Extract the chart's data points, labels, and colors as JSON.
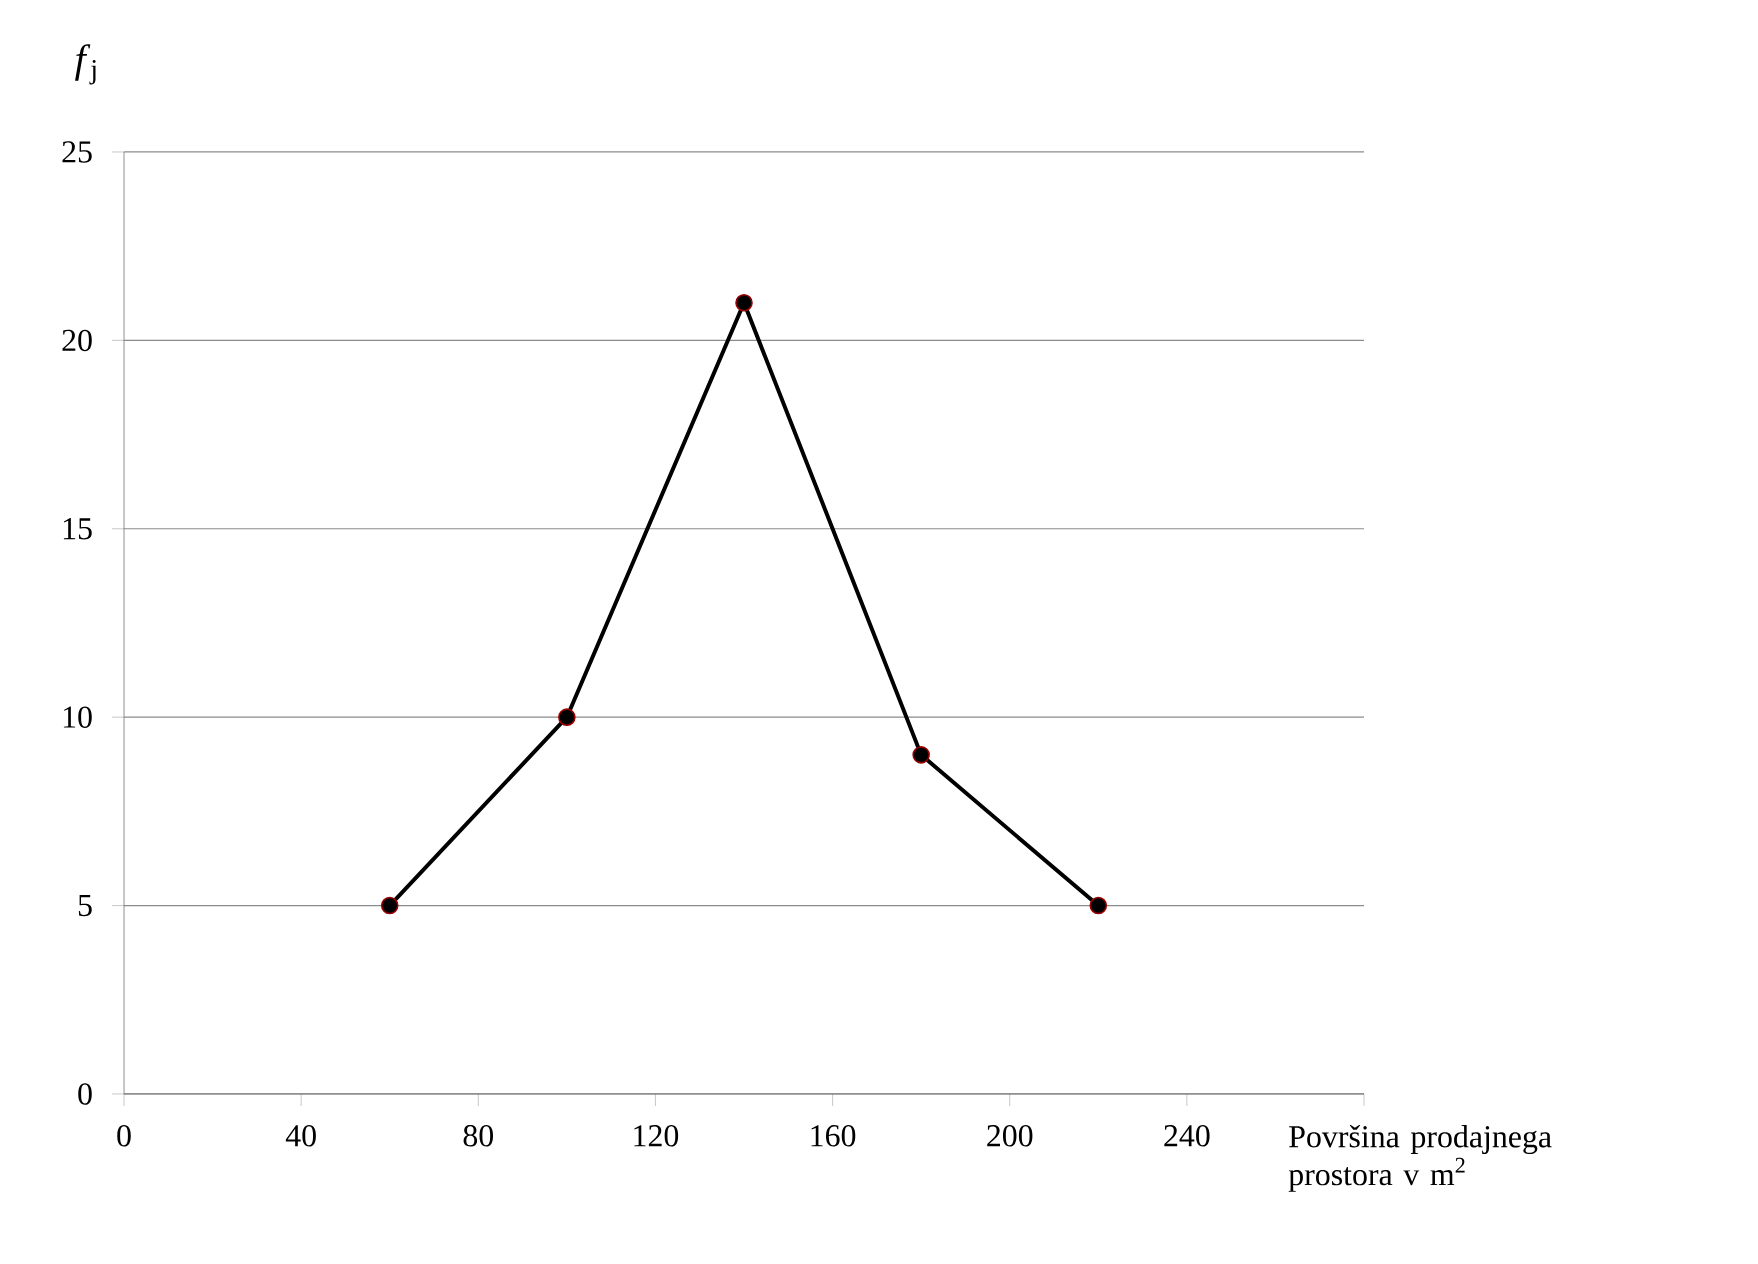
{
  "chart_data": {
    "type": "line",
    "xlabel": "Površina prodajnega prostora v m$^{2}$",
    "ylabel": "*f*$_{j}$",
    "x": [
      60,
      100,
      140,
      180,
      220
    ],
    "values": [
      5,
      10,
      21,
      9,
      5
    ],
    "color": "#000000",
    "xlim": [
      0,
      280
    ],
    "xticks": [
      0,
      40,
      80,
      120,
      160,
      200,
      240,
      {
        "value": 280,
        "label": null
      }
    ],
    "ylim": [
      0,
      25
    ],
    "yticks": [
      0,
      5,
      10,
      15,
      20,
      25
    ],
    "grid": "y",
    "marker": "circle",
    "line_style": "solid"
  }
}
